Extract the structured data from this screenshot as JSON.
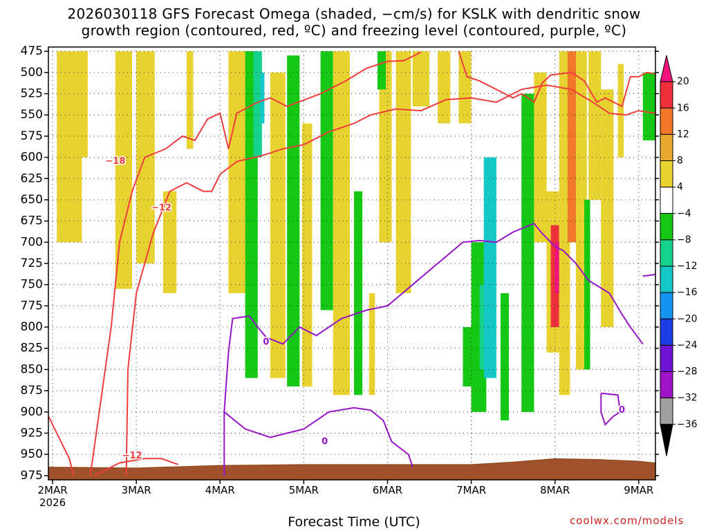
{
  "chart_data": {
    "type": "heatmap",
    "title_line1": "2026030118 GFS Forecast Omega (shaded, −cm/s) for KSLK with dendritic snow",
    "title_line2": "growth region (contoured, red, ºC) and freezing level (contoured, purple, ºC)",
    "xlabel": "Forecast Time (UTC)",
    "credit": "coolwx.com/models",
    "x_ticks": [
      "2MAR",
      "3MAR",
      "4MAR",
      "5MAR",
      "6MAR",
      "7MAR",
      "8MAR",
      "9MAR"
    ],
    "x_year": "2026",
    "x_range_days": [
      -0.05,
      7.2
    ],
    "y_ticks": [
      475,
      500,
      525,
      550,
      575,
      600,
      625,
      650,
      675,
      700,
      725,
      750,
      775,
      800,
      825,
      850,
      875,
      900,
      925,
      950,
      975
    ],
    "y_range_hpa": [
      470,
      980
    ],
    "colorbar": {
      "labels": [
        "20",
        "16",
        "12",
        "8",
        "4",
        "−4",
        "−8",
        "−12",
        "−16",
        "−20",
        "−24",
        "−28",
        "−32",
        "−36"
      ],
      "bins": [
        {
          "lo": 20,
          "hi": 99,
          "color": "#f0157e"
        },
        {
          "lo": 16,
          "hi": 20,
          "color": "#f0303a"
        },
        {
          "lo": 12,
          "hi": 16,
          "color": "#f07828"
        },
        {
          "lo": 8,
          "hi": 12,
          "color": "#e8a830"
        },
        {
          "lo": 4,
          "hi": 8,
          "color": "#e8d230"
        },
        {
          "lo": -4,
          "hi": 4,
          "color": "#ffffff"
        },
        {
          "lo": -8,
          "hi": -4,
          "color": "#14c814"
        },
        {
          "lo": -12,
          "hi": -8,
          "color": "#14d18c"
        },
        {
          "lo": -16,
          "hi": -12,
          "color": "#14c8c8"
        },
        {
          "lo": -20,
          "hi": -16,
          "color": "#1496f0"
        },
        {
          "lo": -24,
          "hi": -20,
          "color": "#1e3ce6"
        },
        {
          "lo": -28,
          "hi": -24,
          "color": "#6e14d2"
        },
        {
          "lo": -32,
          "hi": -28,
          "color": "#a014c8"
        },
        {
          "lo": -36,
          "hi": -32,
          "color": "#a0a0a0"
        },
        {
          "lo": -99,
          "hi": -36,
          "color": "#000000"
        }
      ]
    },
    "omega_regions": [
      {
        "x": [
          0.05,
          0.35
        ],
        "p": [
          475,
          700
        ],
        "value": 5
      },
      {
        "x": [
          0.3,
          0.42
        ],
        "p": [
          475,
          600
        ],
        "value": 6
      },
      {
        "x": [
          0.75,
          0.95
        ],
        "p": [
          475,
          755
        ],
        "value": 5
      },
      {
        "x": [
          0.83,
          0.9
        ],
        "p": [
          475,
          575
        ],
        "value": 6
      },
      {
        "x": [
          1.0,
          1.22
        ],
        "p": [
          475,
          725
        ],
        "value": 5
      },
      {
        "x": [
          1.32,
          1.48
        ],
        "p": [
          640,
          760
        ],
        "value": 5
      },
      {
        "x": [
          1.6,
          1.68
        ],
        "p": [
          475,
          590
        ],
        "value": 5
      },
      {
        "x": [
          2.1,
          2.3
        ],
        "p": [
          475,
          760
        ],
        "value": 5
      },
      {
        "x": [
          2.3,
          2.45
        ],
        "p": [
          475,
          860
        ],
        "value": -5
      },
      {
        "x": [
          2.4,
          2.5
        ],
        "p": [
          475,
          600
        ],
        "value": -10
      },
      {
        "x": [
          2.48,
          2.53
        ],
        "p": [
          500,
          560
        ],
        "value": -14
      },
      {
        "x": [
          2.6,
          2.78
        ],
        "p": [
          500,
          860
        ],
        "value": 5
      },
      {
        "x": [
          2.8,
          2.95
        ],
        "p": [
          480,
          870
        ],
        "value": -5
      },
      {
        "x": [
          2.98,
          3.1
        ],
        "p": [
          560,
          870
        ],
        "value": 5
      },
      {
        "x": [
          3.2,
          3.35
        ],
        "p": [
          475,
          780
        ],
        "value": -5
      },
      {
        "x": [
          3.35,
          3.55
        ],
        "p": [
          475,
          880
        ],
        "value": 5
      },
      {
        "x": [
          3.6,
          3.7
        ],
        "p": [
          640,
          880
        ],
        "value": -5
      },
      {
        "x": [
          3.78,
          3.85
        ],
        "p": [
          760,
          880
        ],
        "value": 5
      },
      {
        "x": [
          3.9,
          4.05
        ],
        "p": [
          475,
          700
        ],
        "value": 5
      },
      {
        "x": [
          3.88,
          3.98
        ],
        "p": [
          475,
          520
        ],
        "value": -5
      },
      {
        "x": [
          4.1,
          4.28
        ],
        "p": [
          475,
          760
        ],
        "value": 5
      },
      {
        "x": [
          4.3,
          4.5
        ],
        "p": [
          475,
          540
        ],
        "value": 6
      },
      {
        "x": [
          4.6,
          4.75
        ],
        "p": [
          475,
          560
        ],
        "value": 5
      },
      {
        "x": [
          4.85,
          5.0
        ],
        "p": [
          475,
          560
        ],
        "value": 6
      },
      {
        "x": [
          4.9,
          5.05
        ],
        "p": [
          800,
          870
        ],
        "value": -6
      },
      {
        "x": [
          5.0,
          5.18
        ],
        "p": [
          700,
          900
        ],
        "value": -6
      },
      {
        "x": [
          5.1,
          5.15
        ],
        "p": [
          750,
          850
        ],
        "value": -10
      },
      {
        "x": [
          5.15,
          5.3
        ],
        "p": [
          600,
          860
        ],
        "value": -14
      },
      {
        "x": [
          5.35,
          5.45
        ],
        "p": [
          760,
          910
        ],
        "value": -6
      },
      {
        "x": [
          5.6,
          5.75
        ],
        "p": [
          525,
          900
        ],
        "value": -5
      },
      {
        "x": [
          5.75,
          5.9
        ],
        "p": [
          500,
          700
        ],
        "value": 5
      },
      {
        "x": [
          5.9,
          6.05
        ],
        "p": [
          640,
          830
        ],
        "value": 6
      },
      {
        "x": [
          5.95,
          6.05
        ],
        "p": [
          680,
          800
        ],
        "value": 16
      },
      {
        "x": [
          6.0,
          6.1
        ],
        "p": [
          700,
          760
        ],
        "value": 21
      },
      {
        "x": [
          6.05,
          6.18
        ],
        "p": [
          475,
          880
        ],
        "value": 7
      },
      {
        "x": [
          6.15,
          6.3
        ],
        "p": [
          475,
          700
        ],
        "value": 12
      },
      {
        "x": [
          6.25,
          6.38
        ],
        "p": [
          475,
          850
        ],
        "value": 6
      },
      {
        "x": [
          6.35,
          6.42
        ],
        "p": [
          650,
          850
        ],
        "value": -6
      },
      {
        "x": [
          6.4,
          6.55
        ],
        "p": [
          475,
          650
        ],
        "value": 5
      },
      {
        "x": [
          6.55,
          6.7
        ],
        "p": [
          520,
          800
        ],
        "value": 5
      },
      {
        "x": [
          6.75,
          6.82
        ],
        "p": [
          490,
          600
        ],
        "value": 5
      },
      {
        "x": [
          7.05,
          7.2
        ],
        "p": [
          500,
          580
        ],
        "value": -5
      }
    ],
    "ground_surface_hpa": [
      [
        -0.05,
        965
      ],
      [
        1.0,
        966
      ],
      [
        2.0,
        963
      ],
      [
        3.0,
        962
      ],
      [
        4.0,
        962
      ],
      [
        5.0,
        962
      ],
      [
        5.5,
        959
      ],
      [
        6.0,
        955
      ],
      [
        6.5,
        956
      ],
      [
        7.0,
        958
      ],
      [
        7.2,
        960
      ]
    ],
    "contours_red": [
      {
        "label": "−18",
        "label_at": [
          0.75,
          605
        ],
        "points": [
          [
            0.45,
            975
          ],
          [
            0.7,
            800
          ],
          [
            0.8,
            700
          ],
          [
            0.95,
            640
          ],
          [
            1.1,
            600
          ],
          [
            1.35,
            590
          ],
          [
            1.55,
            575
          ],
          [
            1.7,
            580
          ],
          [
            1.85,
            555
          ],
          [
            2.0,
            548
          ],
          [
            2.1,
            590
          ],
          [
            2.2,
            548
          ],
          [
            2.45,
            535
          ],
          [
            2.6,
            530
          ],
          [
            2.8,
            540
          ],
          [
            3.2,
            525
          ],
          [
            3.5,
            510
          ],
          [
            3.75,
            495
          ],
          [
            4.0,
            487
          ],
          [
            4.2,
            486
          ],
          [
            4.4,
            476
          ]
        ]
      },
      {
        "label": "−12",
        "label_at": [
          1.3,
          660
        ],
        "points": [
          [
            0.88,
            975
          ],
          [
            0.9,
            850
          ],
          [
            1.0,
            760
          ],
          [
            1.2,
            690
          ],
          [
            1.4,
            640
          ],
          [
            1.6,
            630
          ],
          [
            1.8,
            640
          ],
          [
            1.9,
            640
          ],
          [
            2.0,
            620
          ],
          [
            2.2,
            605
          ],
          [
            2.5,
            598
          ],
          [
            2.75,
            590
          ],
          [
            3.0,
            585
          ],
          [
            3.3,
            570
          ],
          [
            3.6,
            560
          ],
          [
            3.8,
            550
          ],
          [
            4.1,
            543
          ],
          [
            4.4,
            545
          ],
          [
            4.7,
            532
          ],
          [
            5.0,
            530
          ],
          [
            5.3,
            535
          ],
          [
            5.6,
            520
          ],
          [
            5.9,
            515
          ],
          [
            6.2,
            520
          ],
          [
            6.45,
            535
          ],
          [
            6.65,
            548
          ],
          [
            6.85,
            550
          ],
          [
            7.0,
            545
          ],
          [
            7.2,
            548
          ]
        ]
      },
      {
        "label": "−12",
        "label_at": [
          0.95,
          952
        ],
        "points": [
          [
            0.5,
            975
          ],
          [
            0.8,
            960
          ],
          [
            1.1,
            955
          ],
          [
            1.3,
            955
          ],
          [
            1.5,
            962
          ]
        ]
      },
      {
        "label": "",
        "label_at": null,
        "points": [
          [
            -0.05,
            905
          ],
          [
            0.1,
            935
          ],
          [
            0.2,
            955
          ],
          [
            0.25,
            975
          ]
        ]
      },
      {
        "label": "",
        "label_at": null,
        "points": [
          [
            4.85,
            475
          ],
          [
            4.95,
            505
          ],
          [
            5.1,
            510
          ],
          [
            5.4,
            525
          ],
          [
            5.5,
            530
          ],
          [
            5.6,
            525
          ],
          [
            5.75,
            535
          ],
          [
            5.85,
            512
          ],
          [
            5.95,
            503
          ],
          [
            6.2,
            500
          ],
          [
            6.35,
            510
          ],
          [
            6.5,
            535
          ],
          [
            6.6,
            530
          ],
          [
            6.8,
            540
          ],
          [
            6.9,
            505
          ],
          [
            7.0,
            505
          ],
          [
            7.1,
            500
          ],
          [
            7.2,
            502
          ]
        ]
      }
    ],
    "contours_purple": [
      {
        "label": "0",
        "label_at": [
          2.55,
          818
        ],
        "points": [
          [
            2.05,
            975
          ],
          [
            2.05,
            900
          ],
          [
            2.1,
            830
          ],
          [
            2.15,
            790
          ],
          [
            2.35,
            787
          ],
          [
            2.45,
            800
          ],
          [
            2.55,
            812
          ],
          [
            2.75,
            820
          ],
          [
            2.95,
            800
          ],
          [
            3.15,
            810
          ],
          [
            3.45,
            790
          ],
          [
            3.75,
            780
          ],
          [
            4.0,
            775
          ],
          [
            4.3,
            750
          ],
          [
            4.6,
            725
          ],
          [
            4.9,
            700
          ],
          [
            5.1,
            698
          ],
          [
            5.3,
            700
          ],
          [
            5.5,
            688
          ],
          [
            5.75,
            678
          ],
          [
            5.85,
            690
          ],
          [
            6.0,
            705
          ],
          [
            6.1,
            710
          ],
          [
            6.25,
            725
          ],
          [
            6.4,
            745
          ],
          [
            6.65,
            760
          ],
          [
            6.8,
            785
          ],
          [
            6.9,
            800
          ],
          [
            7.05,
            820
          ]
        ]
      },
      {
        "label": "0",
        "label_at": [
          3.25,
          935
        ],
        "points": [
          [
            2.05,
            900
          ],
          [
            2.3,
            920
          ],
          [
            2.6,
            930
          ],
          [
            3.0,
            920
          ],
          [
            3.3,
            900
          ],
          [
            3.6,
            895
          ],
          [
            3.8,
            898
          ],
          [
            3.95,
            910
          ],
          [
            4.05,
            935
          ],
          [
            4.25,
            950
          ],
          [
            4.3,
            965
          ]
        ]
      },
      {
        "label": "0",
        "label_at": [
          6.8,
          898
        ],
        "points": [
          [
            6.55,
            878
          ],
          [
            6.75,
            880
          ],
          [
            6.78,
            900
          ],
          [
            6.7,
            905
          ],
          [
            6.6,
            915
          ],
          [
            6.55,
            900
          ],
          [
            6.55,
            878
          ]
        ]
      },
      {
        "label": "",
        "label_at": null,
        "points": [
          [
            7.05,
            740
          ],
          [
            7.2,
            738
          ]
        ]
      }
    ]
  }
}
